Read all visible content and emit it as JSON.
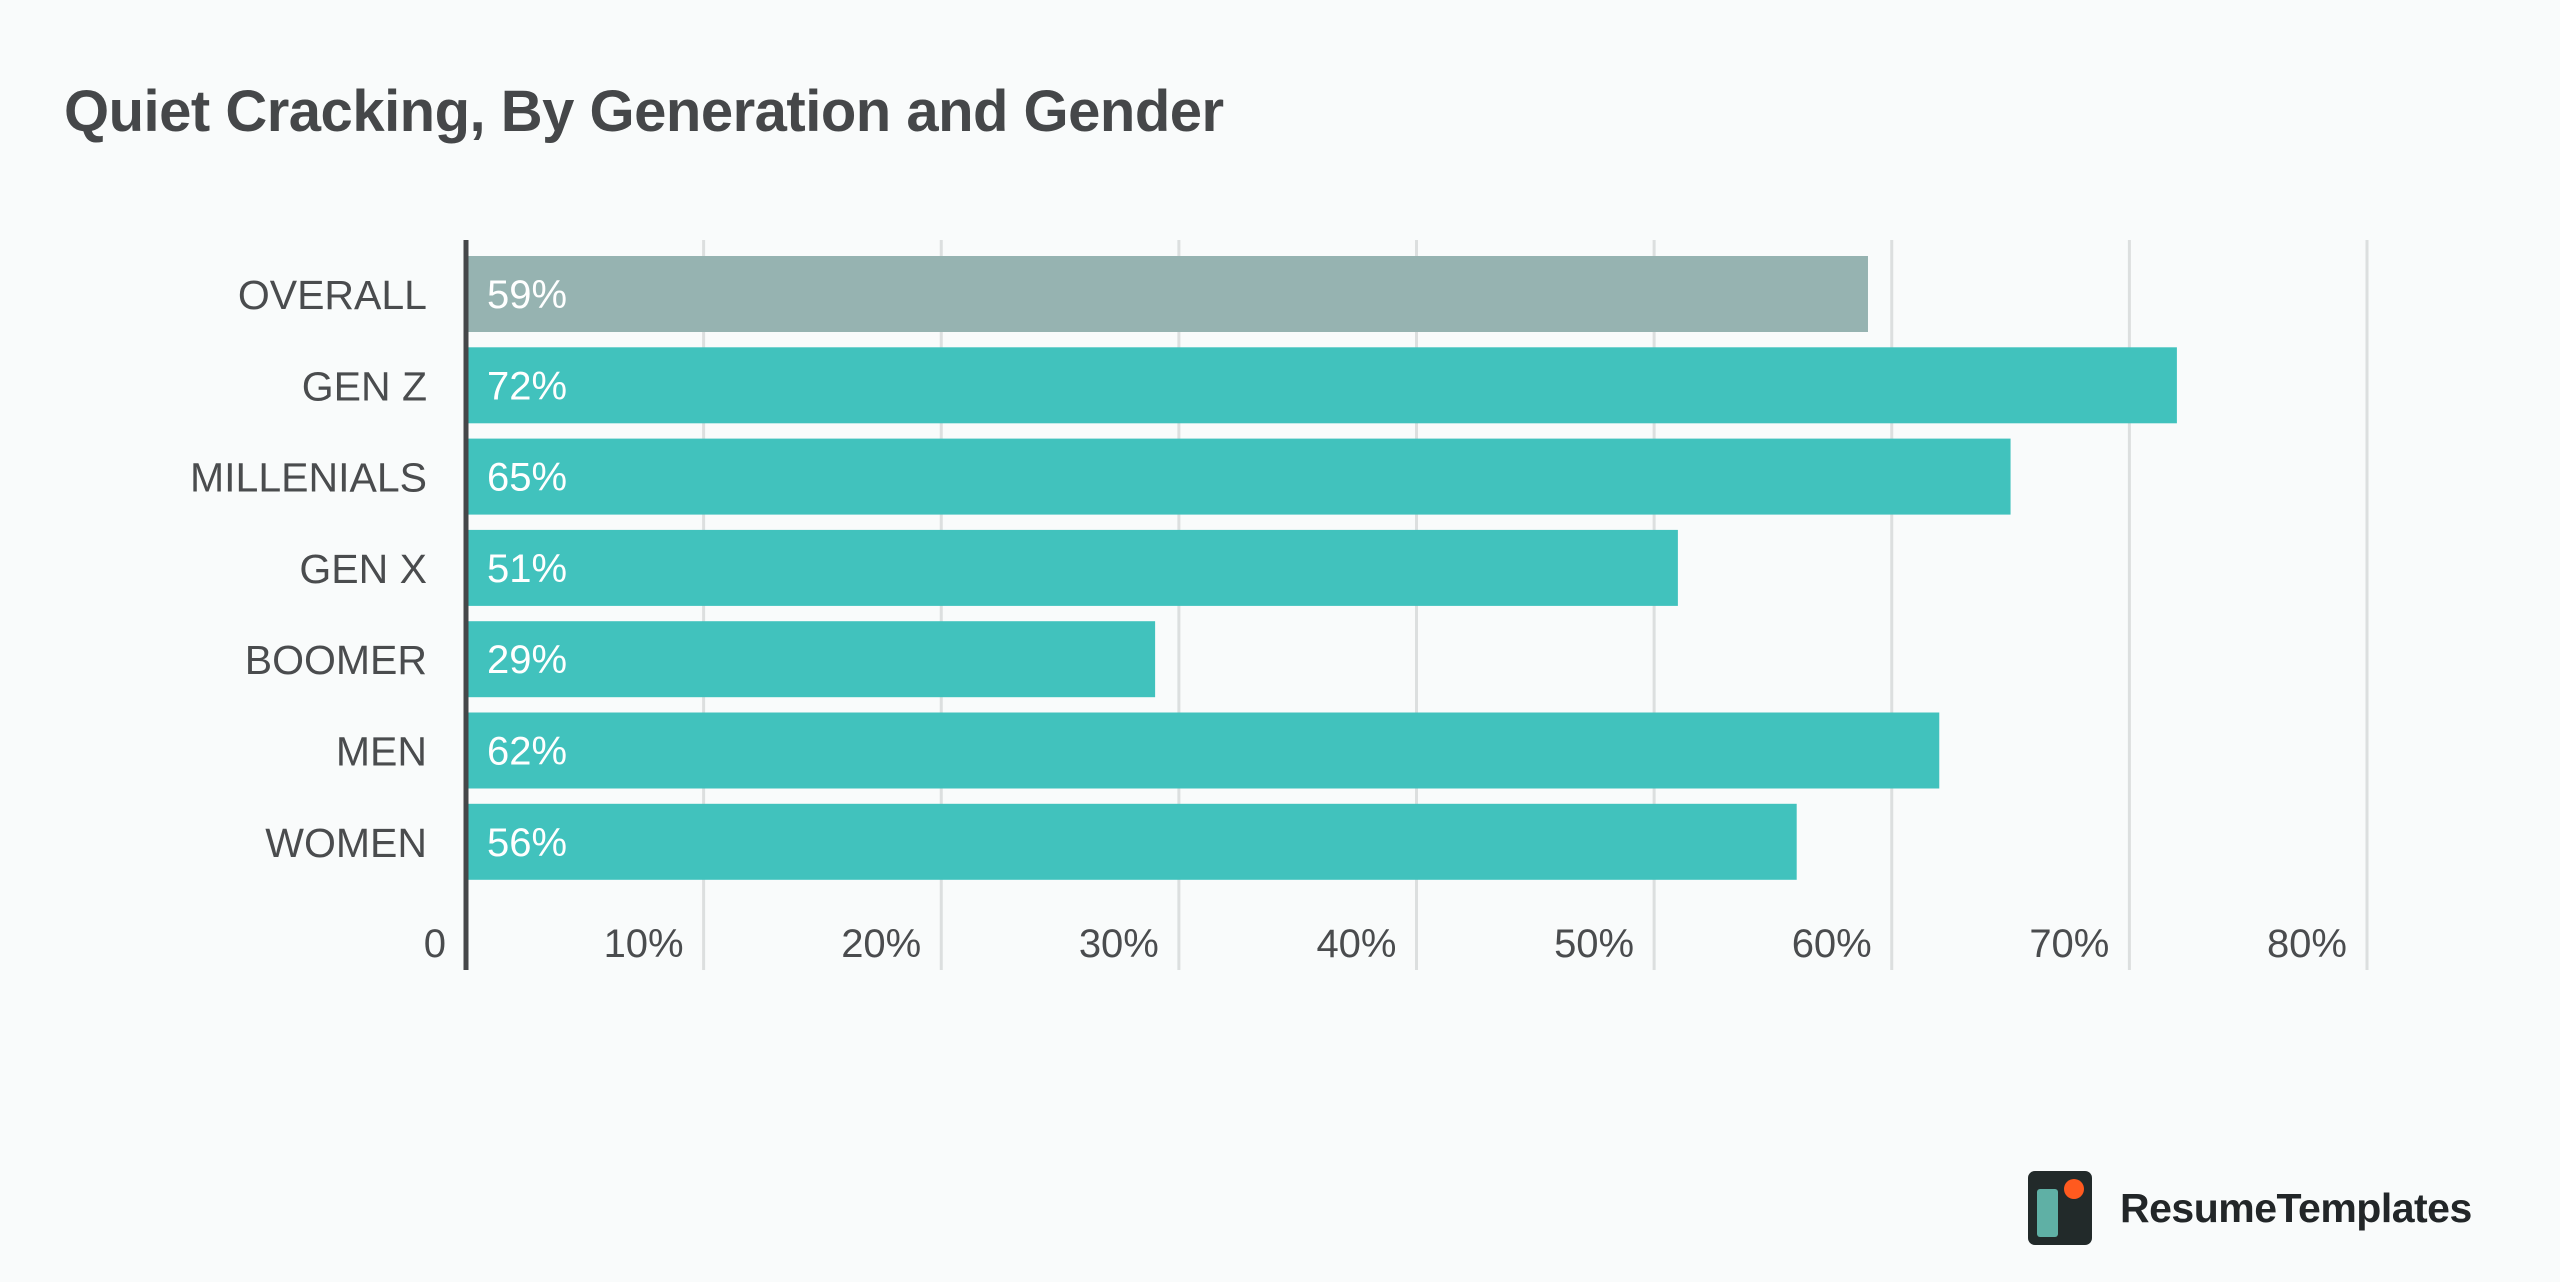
{
  "brand": {
    "name": "ResumeTemplates",
    "colors": {
      "dark": "#222a2a",
      "teal": "#5fb0a5",
      "accent": "#ff5a1f"
    }
  },
  "chart_data": {
    "type": "bar",
    "orientation": "horizontal",
    "title": "Quiet Cracking, By Generation and Gender",
    "categories": [
      "OVERALL",
      "GEN Z",
      "MILLENIALS",
      "GEN X",
      "BOOMER",
      "MEN",
      "WOMEN"
    ],
    "values": [
      59,
      72,
      65,
      51,
      29,
      62,
      56
    ],
    "value_labels": [
      "59%",
      "72%",
      "65%",
      "51%",
      "29%",
      "62%",
      "56%"
    ],
    "colors": [
      "#96b3b1",
      "#41c2bd",
      "#41c2bd",
      "#41c2bd",
      "#41c2bd",
      "#41c2bd",
      "#41c2bd"
    ],
    "xlim": [
      0,
      80
    ],
    "xticks": [
      0,
      10,
      20,
      30,
      40,
      50,
      60,
      70,
      80
    ],
    "xtick_labels": [
      "0",
      "10%",
      "20%",
      "30%",
      "40%",
      "50%",
      "60%",
      "70%",
      "80%"
    ],
    "grid": true,
    "gridline_color": "#dcdfdf",
    "axis_color": "#454749",
    "xlabel": "",
    "ylabel": ""
  }
}
